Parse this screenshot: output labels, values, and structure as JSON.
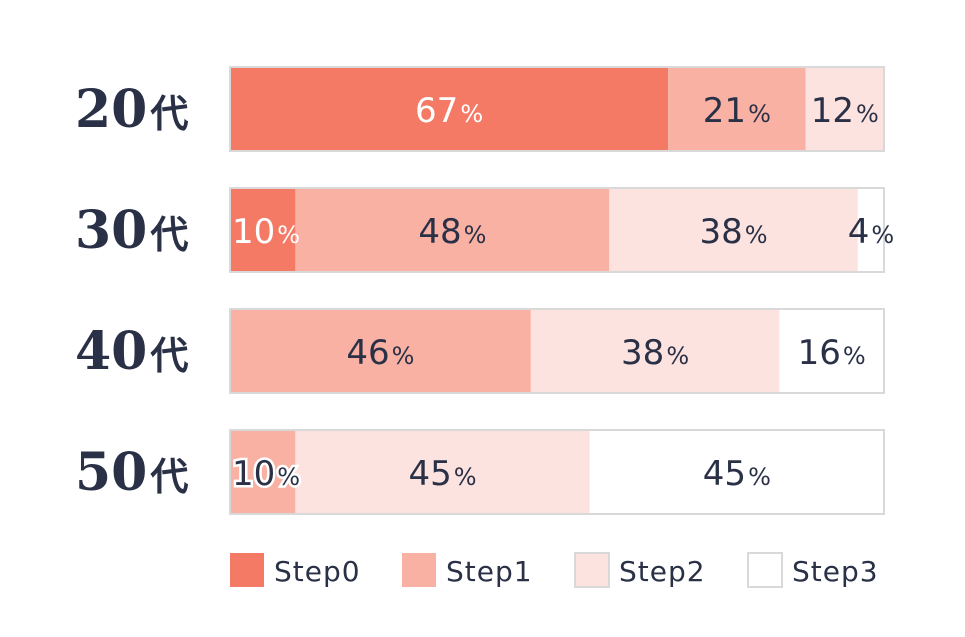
{
  "chart_data": {
    "type": "bar",
    "orientation": "horizontal",
    "stacked": true,
    "percent_unit": "%",
    "categories": [
      "20代",
      "30代",
      "40代",
      "50代"
    ],
    "series": [
      {
        "name": "Step0",
        "color": "#f47a66",
        "values": [
          67,
          10,
          0,
          0
        ]
      },
      {
        "name": "Step1",
        "color": "#f8b1a3",
        "values": [
          21,
          48,
          46,
          10
        ]
      },
      {
        "name": "Step2",
        "color": "#fde3df",
        "values": [
          12,
          38,
          38,
          45
        ]
      },
      {
        "name": "Step3",
        "color": "#ffffff",
        "values": [
          0,
          4,
          16,
          45
        ]
      }
    ],
    "xlim": [
      0,
      100
    ],
    "grid": false,
    "legend": "bottom",
    "colors": {
      "text_dark": "#2a3147",
      "text_light": "#ffffff",
      "border": "#d9d9d9"
    }
  }
}
